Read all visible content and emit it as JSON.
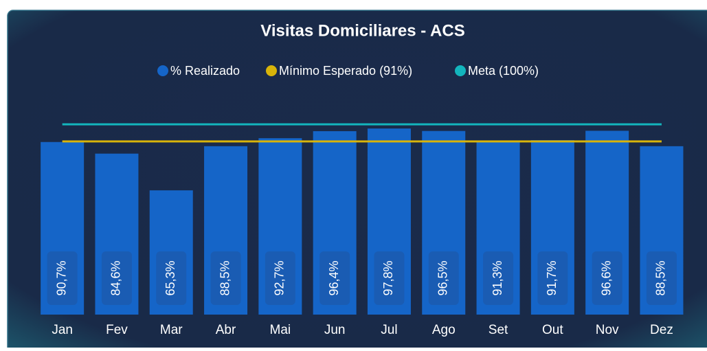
{
  "chart_data": {
    "type": "bar",
    "title": "Visitas Domiciliares - ACS",
    "categories": [
      "Jan",
      "Fev",
      "Mar",
      "Abr",
      "Mai",
      "Jun",
      "Jul",
      "Ago",
      "Set",
      "Out",
      "Nov",
      "Dez"
    ],
    "series": [
      {
        "name": "% Realizado",
        "color": "#1565c8",
        "type": "bar",
        "values": [
          90.7,
          84.6,
          65.3,
          88.5,
          92.7,
          96.4,
          97.8,
          96.5,
          91.3,
          91.7,
          96.6,
          88.5
        ],
        "value_labels": [
          "90,7%",
          "84,6%",
          "65,3%",
          "88,5%",
          "92,7%",
          "96,4%",
          "97,8%",
          "96,5%",
          "91,3%",
          "91,7%",
          "96,6%",
          "88,5%"
        ]
      },
      {
        "name": "Mínimo Esperado (91%)",
        "color": "#d8b40a",
        "type": "line",
        "values": [
          91,
          91,
          91,
          91,
          91,
          91,
          91,
          91,
          91,
          91,
          91,
          91
        ]
      },
      {
        "name": "Meta (100%)",
        "color": "#13b5bd",
        "type": "line",
        "values": [
          100,
          100,
          100,
          100,
          100,
          100,
          100,
          100,
          100,
          100,
          100,
          100
        ]
      }
    ],
    "ylim": [
      0,
      110
    ]
  }
}
